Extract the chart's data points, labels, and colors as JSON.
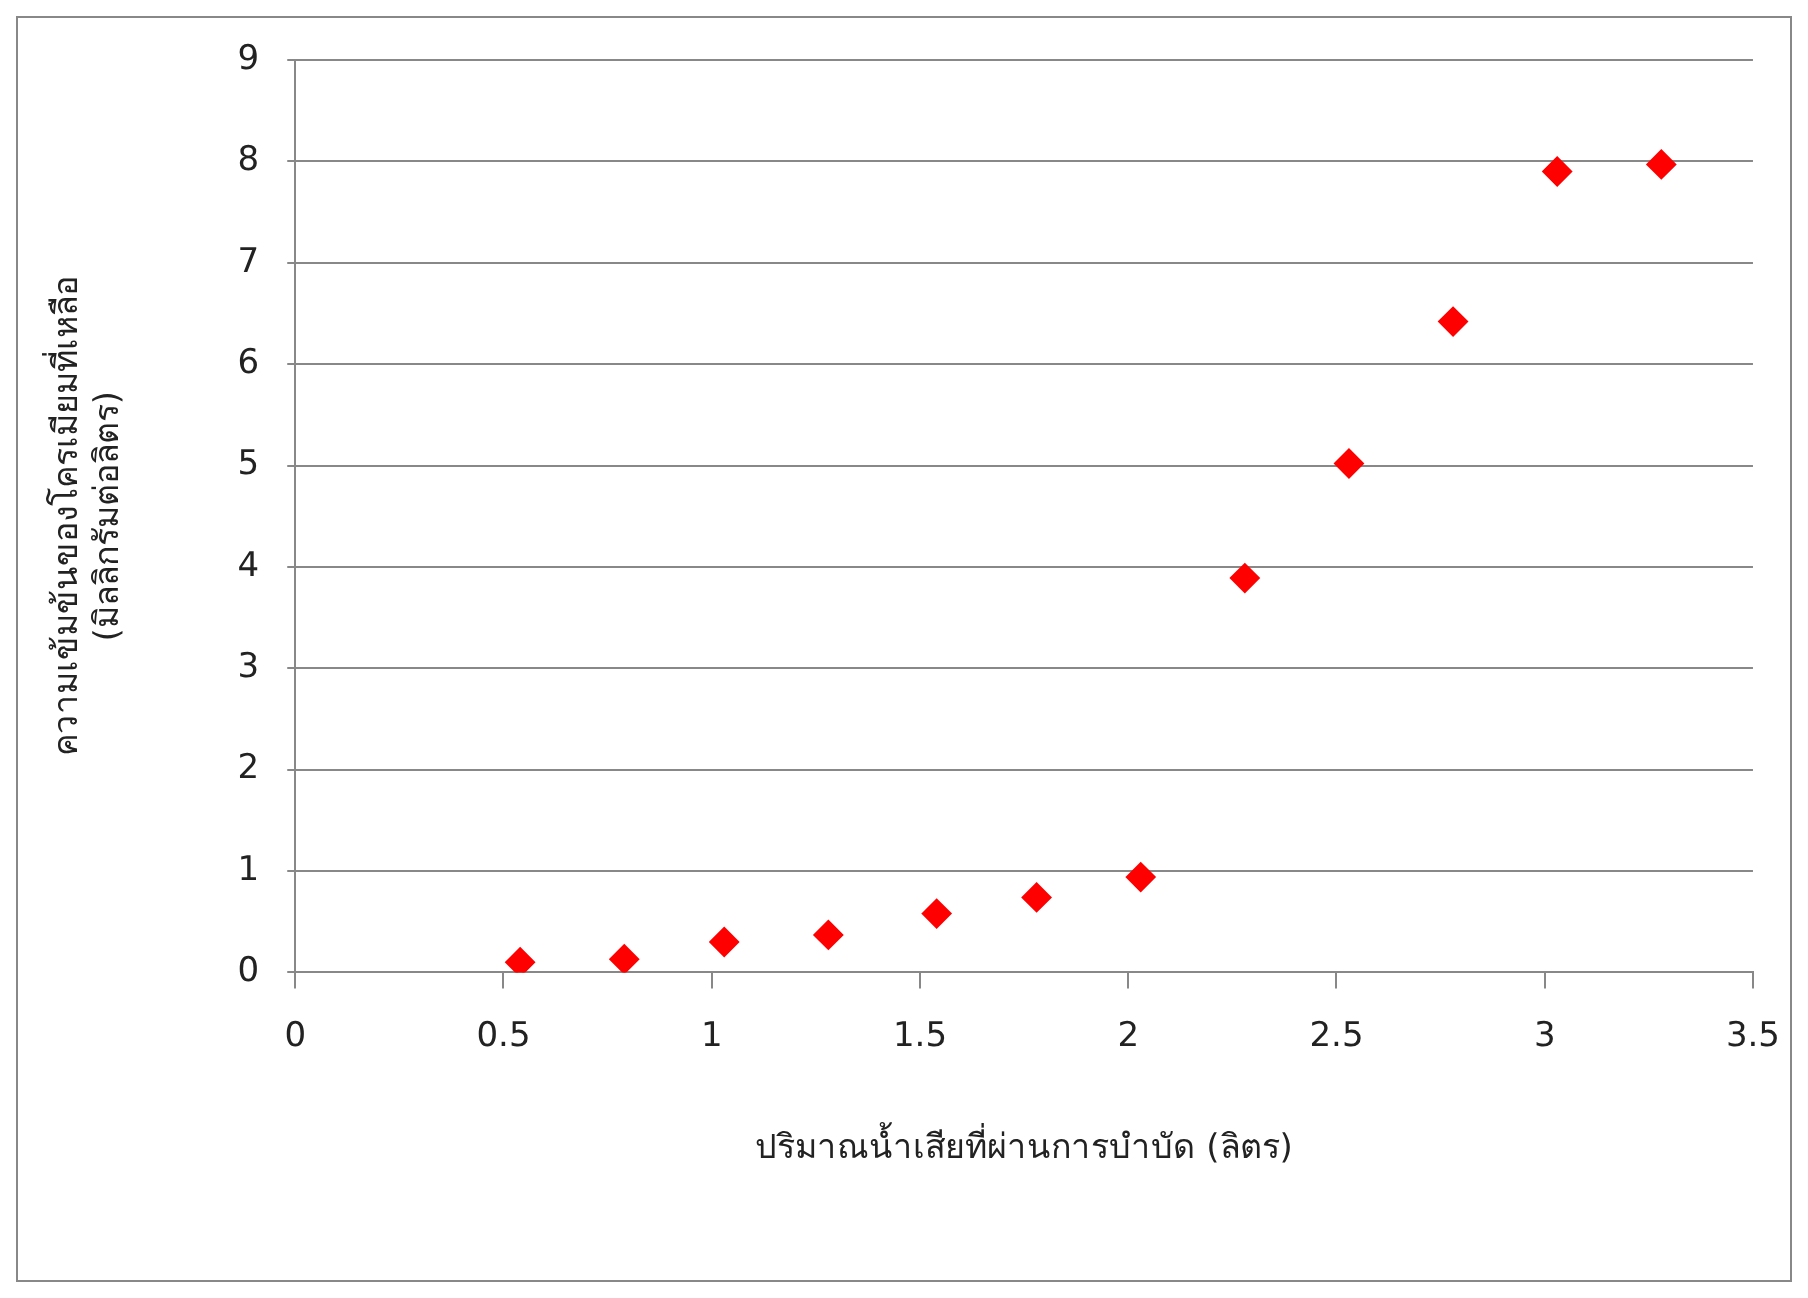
{
  "chart_data": {
    "type": "scatter",
    "xlabel": "ปริมาณน้ำเสียที่ผ่านการบำบัด (ลิตร)",
    "ylabel": [
      "ความเข้มข้นของโครเมียมที่เหลือ",
      "(มิลลิกรัมต่อลิตร)"
    ],
    "x": [
      0.54,
      0.79,
      1.03,
      1.28,
      1.54,
      1.78,
      2.03,
      2.28,
      2.53,
      2.78,
      3.03,
      3.28
    ],
    "series": [
      {
        "color": "#ff0000",
        "values": [
          0.1,
          0.13,
          0.3,
          0.37,
          0.58,
          0.74,
          0.94,
          3.89,
          5.02,
          6.42,
          7.9,
          7.97
        ]
      }
    ],
    "xlim": [
      0,
      3.5
    ],
    "xticks": [
      0,
      0.5,
      1,
      1.5,
      2,
      2.5,
      3,
      3.5
    ],
    "ylim": [
      0,
      9
    ],
    "yticks": [
      0,
      1,
      2,
      3,
      4,
      5,
      6,
      7,
      8,
      9
    ],
    "grid": "y",
    "legend": false,
    "marker": "diamond"
  }
}
